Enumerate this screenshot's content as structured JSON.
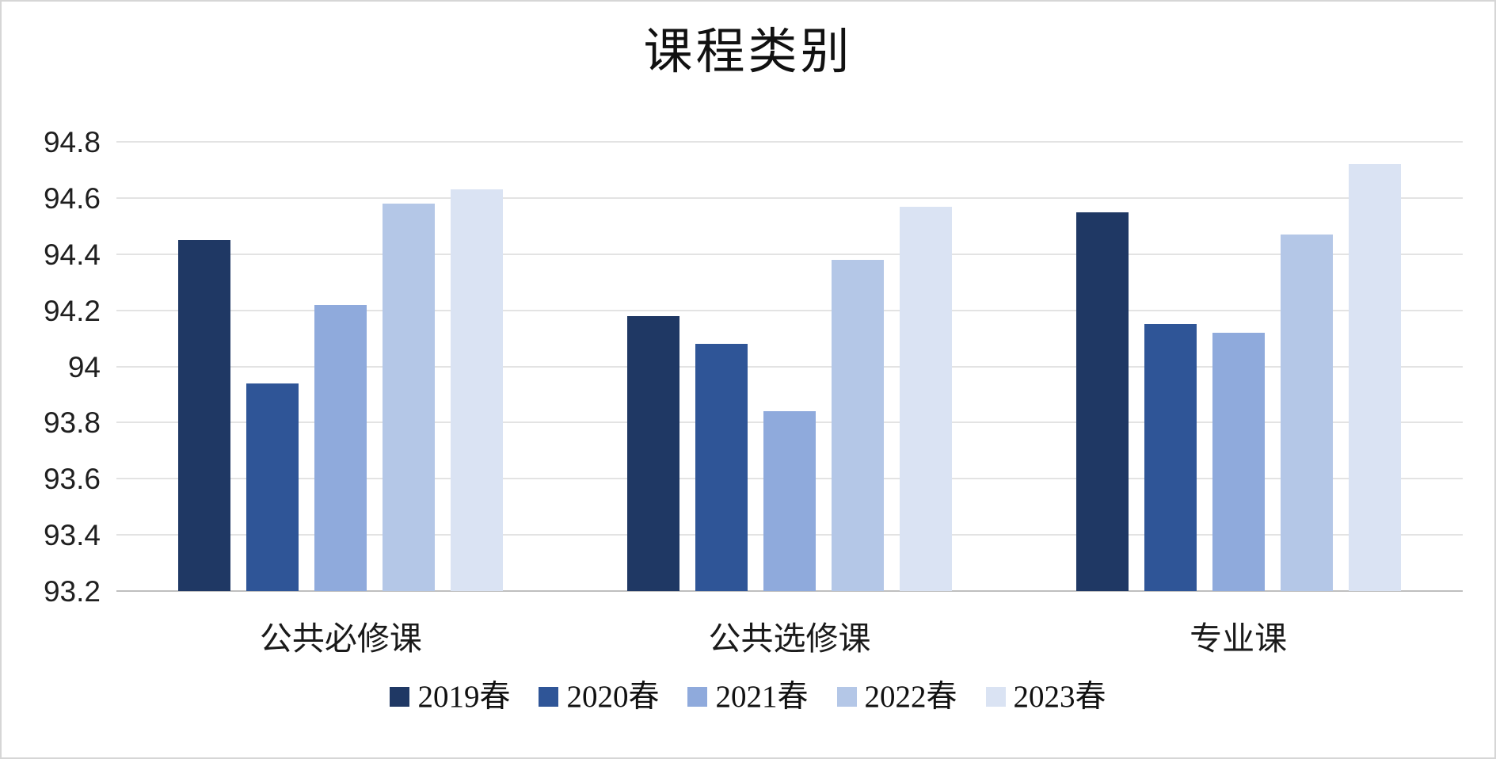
{
  "chart_data": {
    "type": "bar",
    "title": "课程类别",
    "categories": [
      "公共必修课",
      "公共选修课",
      "专业课"
    ],
    "series": [
      {
        "name": "2019春",
        "color": "#1F3864",
        "values": [
          94.45,
          94.18,
          94.55
        ]
      },
      {
        "name": "2020春",
        "color": "#2F5597",
        "values": [
          93.94,
          94.08,
          94.15
        ]
      },
      {
        "name": "2021春",
        "color": "#8FAADC",
        "values": [
          94.22,
          93.84,
          94.12
        ]
      },
      {
        "name": "2022春",
        "color": "#B4C7E7",
        "values": [
          94.58,
          94.38,
          94.47
        ]
      },
      {
        "name": "2023春",
        "color": "#DAE3F3",
        "values": [
          94.63,
          94.57,
          94.72
        ]
      }
    ],
    "ylim": [
      93.2,
      94.8
    ],
    "ytick_step": 0.2,
    "ytick_labels": [
      "93.2",
      "93.4",
      "93.6",
      "93.8",
      "94",
      "94.2",
      "94.4",
      "94.6",
      "94.8"
    ],
    "xlabel": "",
    "ylabel": "",
    "grid": true,
    "legend_position": "bottom"
  },
  "colors": {
    "gridline": "#e3e3e3",
    "axis_line": "#bfbfbf",
    "chart_border": "#d6d6d6",
    "text": "#1a1a1a",
    "background": "#ffffff"
  }
}
